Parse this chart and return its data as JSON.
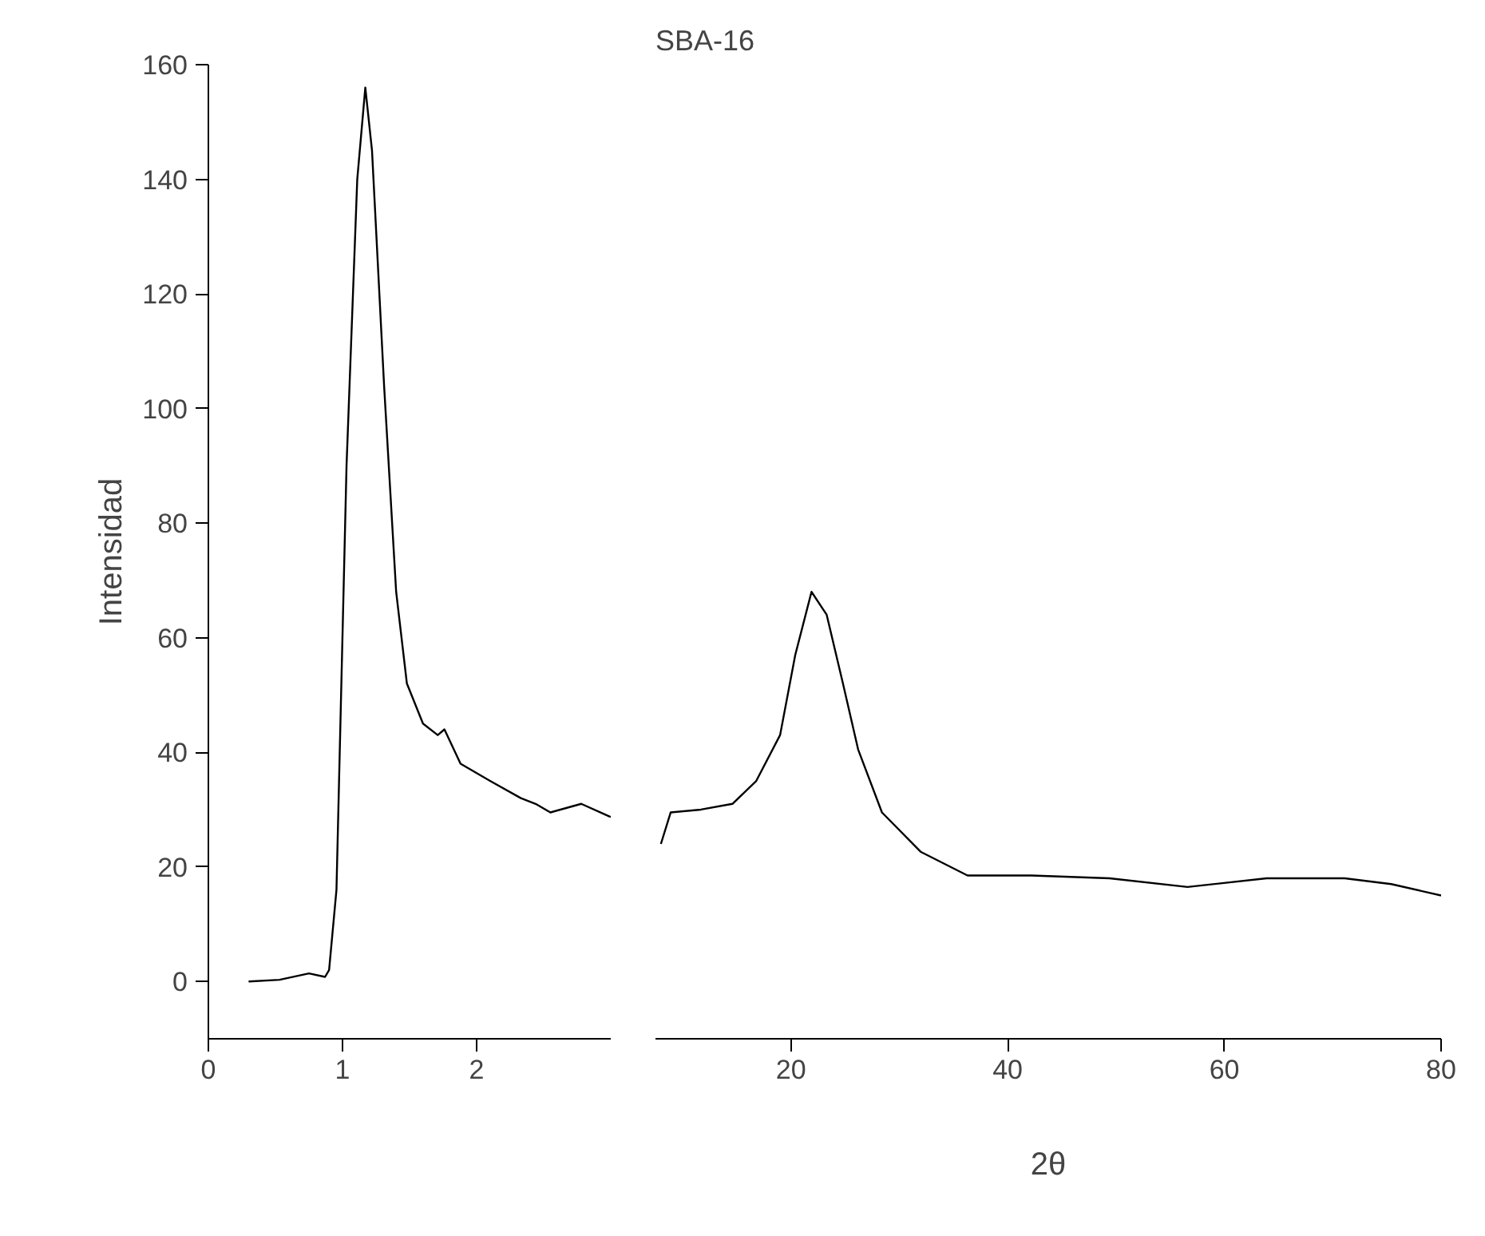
{
  "chart_data": [
    {
      "type": "line",
      "ylabel": "Intensidad",
      "color": "#000000",
      "x": [
        0.3,
        0.53,
        0.75,
        0.87,
        0.9,
        0.955,
        1.03,
        1.11,
        1.17,
        1.22,
        1.31,
        1.4,
        1.48,
        1.6,
        1.71,
        1.76,
        1.88,
        2.1,
        2.33,
        2.44,
        2.55,
        2.78,
        3.0
      ],
      "values": [
        0,
        0.3,
        1.4,
        0.8,
        2,
        16,
        90,
        140,
        156,
        145,
        104,
        68,
        52,
        45,
        43,
        44,
        38,
        35,
        32,
        31,
        29.5,
        31,
        28.7
      ],
      "xlim": [
        0,
        3
      ],
      "xticks": [
        0,
        1,
        2
      ],
      "ylim": [
        -10,
        160
      ],
      "yticks": [
        0,
        20,
        40,
        60,
        80,
        100,
        120,
        140,
        160
      ]
    },
    {
      "type": "line",
      "title": "SBA-16",
      "xlabel": "2θ",
      "color": "#000000",
      "x": [
        8,
        8.9,
        11.7,
        14.6,
        16.8,
        19,
        20.4,
        21.9,
        23.3,
        24.8,
        26.2,
        28.4,
        32,
        36.3,
        42.2,
        49.4,
        56.6,
        63.9,
        71.1,
        75.4,
        80
      ],
      "values": [
        24,
        29.5,
        30,
        31,
        35,
        43,
        57,
        68,
        64,
        52,
        40.5,
        29.5,
        22.6,
        18.5,
        18.5,
        18,
        16.5,
        18,
        18,
        17,
        15
      ],
      "xlim": [
        7.5,
        80
      ],
      "xticks": [
        20,
        40,
        60,
        80
      ],
      "ylim": [
        -10,
        160
      ],
      "yticks": [
        0,
        20,
        40,
        60,
        80,
        100,
        120,
        140,
        160
      ],
      "tick_labels": "x"
    }
  ]
}
